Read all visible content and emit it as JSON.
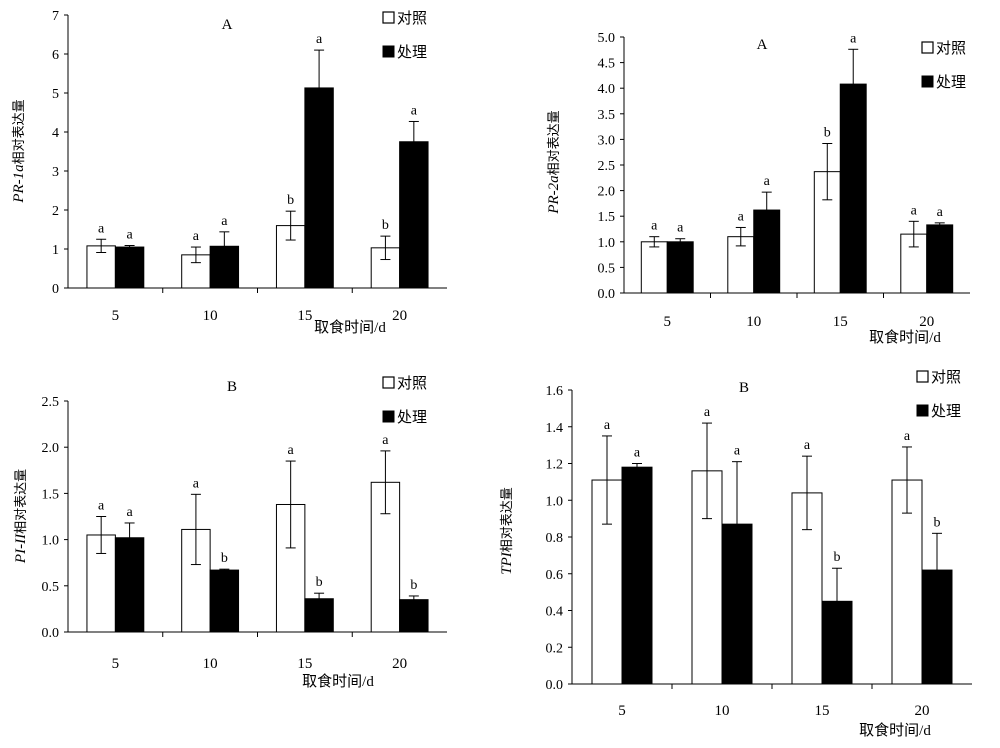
{
  "legend": {
    "control": "对照",
    "treatment": "处理"
  },
  "x_axis_label": "取食时间/d",
  "ylabel_suffix": "相对表达量",
  "chart_data": [
    {
      "type": "bar",
      "panel": "A",
      "gene": "PR-1a",
      "categories": [
        "5",
        "10",
        "15",
        "20"
      ],
      "series": [
        {
          "name": "对照",
          "values": [
            1.08,
            0.85,
            1.6,
            1.03
          ],
          "errors": [
            0.17,
            0.2,
            0.37,
            0.3
          ],
          "letters": [
            "a",
            "a",
            "b",
            "b"
          ]
        },
        {
          "name": "处理",
          "values": [
            1.05,
            1.07,
            5.13,
            3.75
          ],
          "errors": [
            0.04,
            0.37,
            0.97,
            0.52
          ],
          "letters": [
            "a",
            "a",
            "a",
            "a"
          ]
        }
      ],
      "ylim": [
        0,
        7
      ],
      "yticks": [
        "0",
        "1",
        "2",
        "3",
        "4",
        "5",
        "6",
        "7"
      ],
      "legend_position": "top-right"
    },
    {
      "type": "bar",
      "panel": "A",
      "gene": "PR-2a",
      "categories": [
        "5",
        "10",
        "15",
        "20"
      ],
      "series": [
        {
          "name": "对照",
          "values": [
            1.0,
            1.1,
            2.37,
            1.15
          ],
          "errors": [
            0.1,
            0.18,
            0.55,
            0.25
          ],
          "letters": [
            "a",
            "a",
            "b",
            "a"
          ]
        },
        {
          "name": "处理",
          "values": [
            1.0,
            1.62,
            4.08,
            1.33
          ],
          "errors": [
            0.06,
            0.35,
            0.68,
            0.04
          ],
          "letters": [
            "a",
            "a",
            "a",
            "a"
          ]
        }
      ],
      "ylim": [
        0,
        5
      ],
      "yticks": [
        "0.0",
        "0.5",
        "1.0",
        "1.5",
        "2.0",
        "2.5",
        "3.0",
        "3.5",
        "4.0",
        "4.5",
        "5.0"
      ],
      "legend_position": "top-right"
    },
    {
      "type": "bar",
      "panel": "B",
      "gene": "PI-II",
      "categories": [
        "5",
        "10",
        "15",
        "20"
      ],
      "series": [
        {
          "name": "对照",
          "values": [
            1.05,
            1.11,
            1.38,
            1.62
          ],
          "errors": [
            0.2,
            0.38,
            0.47,
            0.34
          ],
          "letters": [
            "a",
            "a",
            "a",
            "a"
          ]
        },
        {
          "name": "处理",
          "values": [
            1.02,
            0.67,
            0.36,
            0.35
          ],
          "errors": [
            0.16,
            0.01,
            0.06,
            0.04
          ],
          "letters": [
            "a",
            "b",
            "b",
            "b"
          ]
        }
      ],
      "ylim": [
        0,
        2.5
      ],
      "yticks": [
        "0.0",
        "0.5",
        "1.0",
        "1.5",
        "2.0",
        "2.5"
      ],
      "legend_position": "top-right"
    },
    {
      "type": "bar",
      "panel": "B",
      "gene": "TPI",
      "categories": [
        "5",
        "10",
        "15",
        "20"
      ],
      "series": [
        {
          "name": "对照",
          "values": [
            1.11,
            1.16,
            1.04,
            1.11
          ],
          "errors": [
            0.24,
            0.26,
            0.2,
            0.18
          ],
          "letters": [
            "a",
            "a",
            "a",
            "a"
          ]
        },
        {
          "name": "处理",
          "values": [
            1.18,
            0.87,
            0.45,
            0.62
          ],
          "errors": [
            0.02,
            0.34,
            0.18,
            0.2
          ],
          "letters": [
            "a",
            "a",
            "b",
            "b"
          ]
        }
      ],
      "ylim": [
        0,
        1.6
      ],
      "yticks": [
        "0.0",
        "0.2",
        "0.4",
        "0.6",
        "0.8",
        "1.0",
        "1.2",
        "1.4",
        "1.6"
      ],
      "legend_position": "top-right"
    }
  ]
}
